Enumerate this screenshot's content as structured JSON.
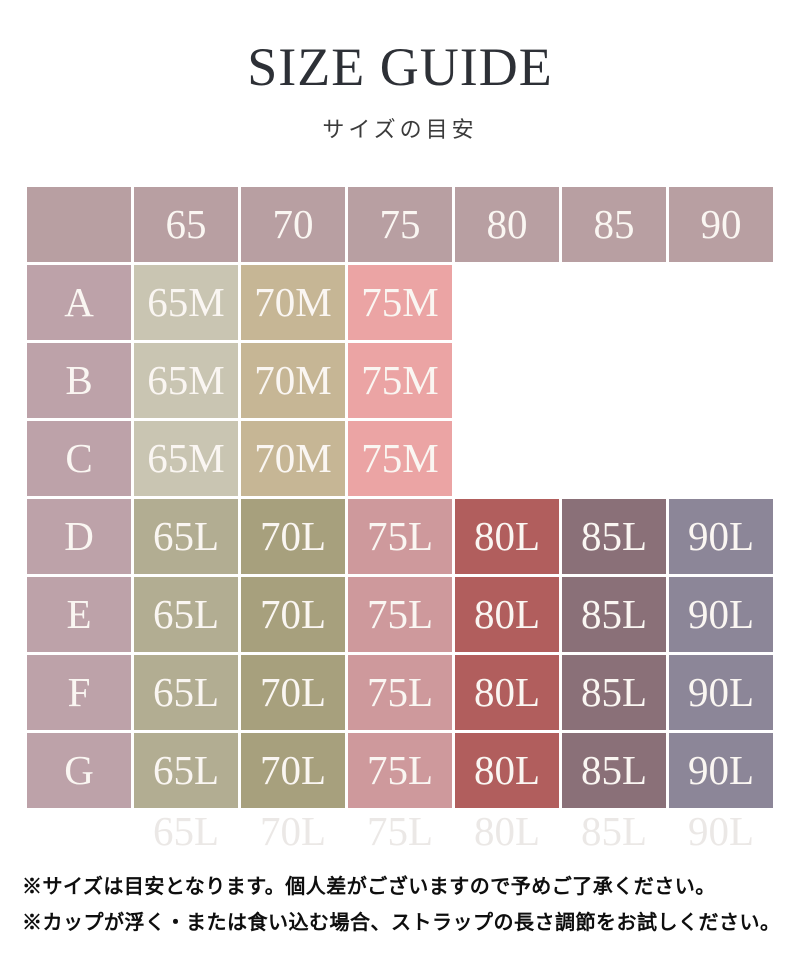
{
  "title": "SIZE GUIDE",
  "subtitle": "サイズの目安",
  "table": {
    "column_headers": [
      "65",
      "70",
      "75",
      "80",
      "85",
      "90"
    ],
    "header_bg": "#b89fa2",
    "label_bg": "#bda2a9",
    "cell_text_color": "#faf6f2",
    "rows": [
      {
        "label": "A",
        "cells": [
          {
            "text": "65M",
            "bg": "#c9c5b2"
          },
          {
            "text": "70M",
            "bg": "#c6b695"
          },
          {
            "text": "75M",
            "bg": "#eba4a4"
          },
          null,
          null,
          null
        ]
      },
      {
        "label": "B",
        "cells": [
          {
            "text": "65M",
            "bg": "#c9c5b2"
          },
          {
            "text": "70M",
            "bg": "#c6b695"
          },
          {
            "text": "75M",
            "bg": "#eba4a4"
          },
          null,
          null,
          null
        ]
      },
      {
        "label": "C",
        "cells": [
          {
            "text": "65M",
            "bg": "#c9c5b2"
          },
          {
            "text": "70M",
            "bg": "#c6b695"
          },
          {
            "text": "75M",
            "bg": "#eba4a4"
          },
          null,
          null,
          null
        ]
      },
      {
        "label": "D",
        "cells": [
          {
            "text": "65L",
            "bg": "#b2ad92"
          },
          {
            "text": "70L",
            "bg": "#a7a07d"
          },
          {
            "text": "75L",
            "bg": "#ce999c"
          },
          {
            "text": "80L",
            "bg": "#b15e5d"
          },
          {
            "text": "85L",
            "bg": "#8a7078"
          },
          {
            "text": "90L",
            "bg": "#8c8698"
          }
        ]
      },
      {
        "label": "E",
        "cells": [
          {
            "text": "65L",
            "bg": "#b2ad92"
          },
          {
            "text": "70L",
            "bg": "#a7a07d"
          },
          {
            "text": "75L",
            "bg": "#ce999c"
          },
          {
            "text": "80L",
            "bg": "#b15e5d"
          },
          {
            "text": "85L",
            "bg": "#8a7078"
          },
          {
            "text": "90L",
            "bg": "#8c8698"
          }
        ]
      },
      {
        "label": "F",
        "cells": [
          {
            "text": "65L",
            "bg": "#b2ad92"
          },
          {
            "text": "70L",
            "bg": "#a7a07d"
          },
          {
            "text": "75L",
            "bg": "#ce999c"
          },
          {
            "text": "80L",
            "bg": "#b15e5d"
          },
          {
            "text": "85L",
            "bg": "#8a7078"
          },
          {
            "text": "90L",
            "bg": "#8c8698"
          }
        ]
      },
      {
        "label": "G",
        "cells": [
          {
            "text": "65L",
            "bg": "#b2ad92"
          },
          {
            "text": "70L",
            "bg": "#a7a07d"
          },
          {
            "text": "75L",
            "bg": "#ce999c"
          },
          {
            "text": "80L",
            "bg": "#b15e5d"
          },
          {
            "text": "85L",
            "bg": "#8a7078"
          },
          {
            "text": "90L",
            "bg": "#8c8698"
          }
        ]
      }
    ],
    "ghost_row": [
      "65L",
      "70L",
      "75L",
      "80L",
      "85L",
      "90L"
    ]
  },
  "notes": [
    "※サイズは目安となります。個人差がございますので予めご了承ください。",
    "※カップが浮く・または食い込む場合、ストラップの長さ調節をお試しください。"
  ]
}
